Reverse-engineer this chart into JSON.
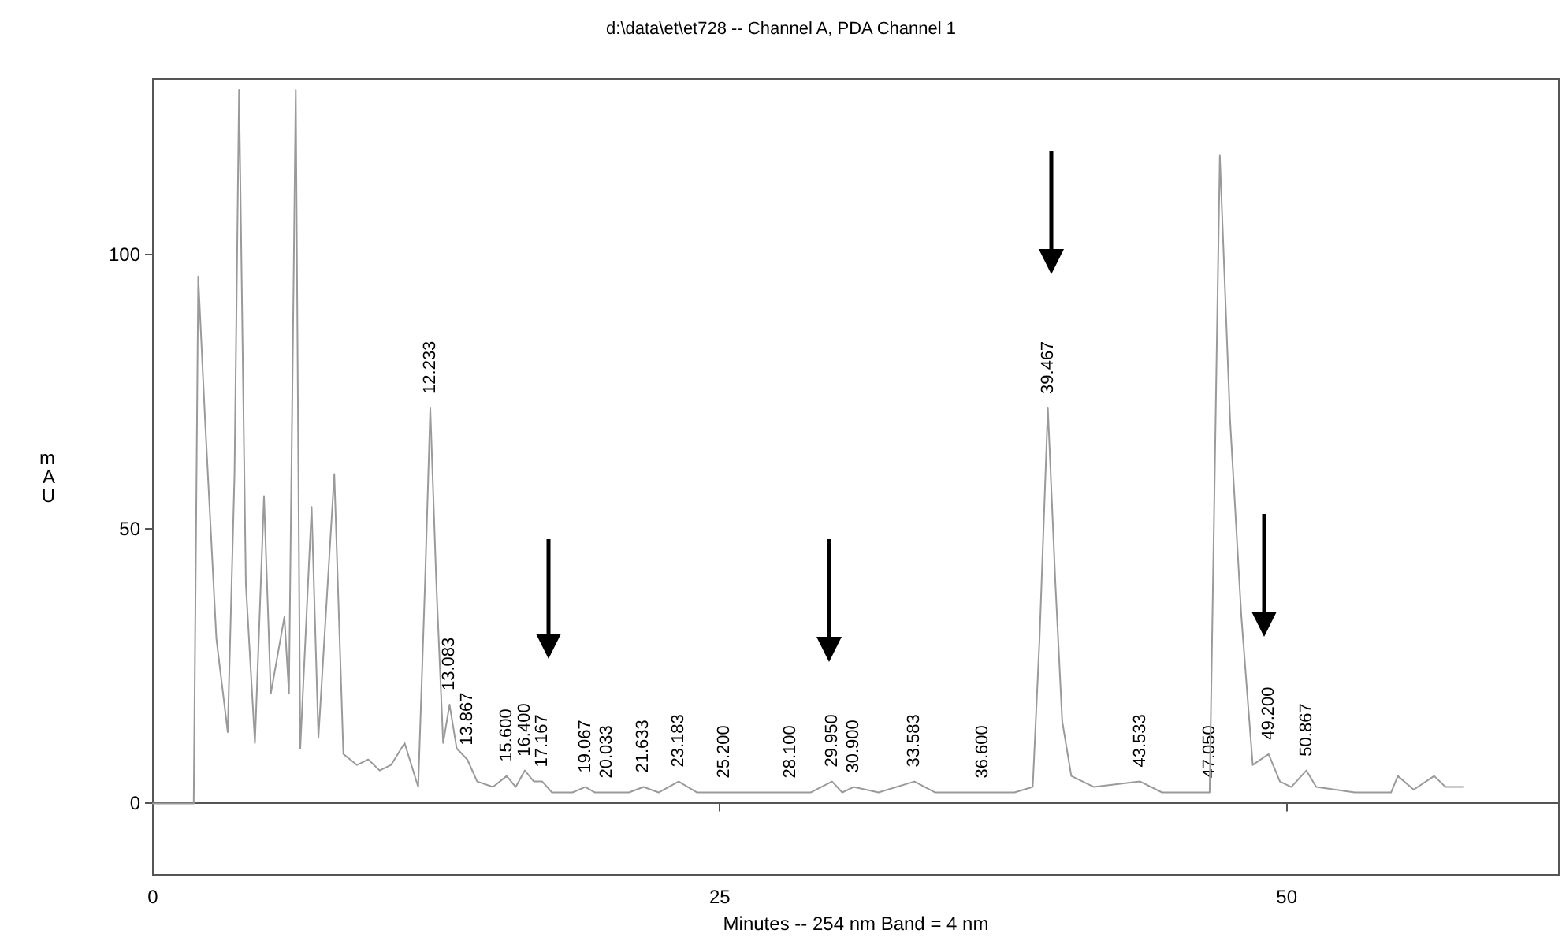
{
  "chart_data": {
    "type": "line",
    "title": "d:\\data\\et\\et728 -- Channel A, PDA Channel 1",
    "xlabel": "Minutes -- 254 nm Band = 4 nm",
    "ylabel": "mAU",
    "x": [
      0,
      1.8,
      2.0,
      2.3,
      2.8,
      3.3,
      3.6,
      3.8,
      4.1,
      4.5,
      4.9,
      5.2,
      5.8,
      6.0,
      6.3,
      6.5,
      7.0,
      7.3,
      8.0,
      8.4,
      9.0,
      9.5,
      10.0,
      10.5,
      11.1,
      11.7,
      12.0,
      12.233,
      12.5,
      12.8,
      13.083,
      13.4,
      13.867,
      14.3,
      15.0,
      15.6,
      16.0,
      16.4,
      16.8,
      17.167,
      17.6,
      18.5,
      19.067,
      19.5,
      20.033,
      21.0,
      21.633,
      22.3,
      23.183,
      24.0,
      25.2,
      26.5,
      28.1,
      29.0,
      29.95,
      30.4,
      30.9,
      32.0,
      33.583,
      34.5,
      36.6,
      38.0,
      38.8,
      39.1,
      39.467,
      39.8,
      40.1,
      40.5,
      41.5,
      43.533,
      44.5,
      46.0,
      46.6,
      47.05,
      47.5,
      48.0,
      48.5,
      49.2,
      49.7,
      50.2,
      50.867,
      51.3,
      53.0,
      54.6,
      54.9,
      55.6,
      56.5,
      57.0,
      57.8
    ],
    "values": [
      0,
      0,
      96,
      70,
      30,
      13,
      60,
      130,
      40,
      11,
      56,
      20,
      34,
      20,
      130,
      10,
      54,
      12,
      60,
      9,
      7,
      8,
      6,
      7,
      11,
      3,
      40,
      72,
      40,
      11,
      18,
      10,
      8,
      4,
      3,
      5,
      3,
      6,
      4,
      4,
      2,
      2,
      3,
      2,
      2,
      2,
      3,
      2,
      4,
      2,
      2,
      2,
      2,
      2,
      4,
      2,
      3,
      2,
      4,
      2,
      2,
      2,
      3,
      30,
      72,
      40,
      15,
      5,
      3,
      4,
      2,
      2,
      2,
      118,
      70,
      34,
      7,
      9,
      4,
      3,
      6,
      3,
      2,
      2,
      5,
      2.5,
      5,
      3,
      3
    ],
    "color": "#9a9a9a",
    "xlim": [
      0,
      62
    ],
    "xticks": [
      0,
      25,
      50
    ],
    "ylim": [
      -13,
      132
    ],
    "yticks": [
      0,
      50,
      100
    ],
    "annotations": [
      {
        "text": "12.233",
        "x": 12.233,
        "y": 72
      },
      {
        "text": "13.083",
        "x": 13.083,
        "y": 18
      },
      {
        "text": "13.867",
        "x": 13.867,
        "y": 8
      },
      {
        "text": "15.600",
        "x": 15.6,
        "y": 5
      },
      {
        "text": "16.400",
        "x": 16.4,
        "y": 6
      },
      {
        "text": "17.167",
        "x": 17.167,
        "y": 4
      },
      {
        "text": "19.067",
        "x": 19.067,
        "y": 3
      },
      {
        "text": "20.033",
        "x": 20.033,
        "y": 2
      },
      {
        "text": "21.633",
        "x": 21.633,
        "y": 3
      },
      {
        "text": "23.183",
        "x": 23.183,
        "y": 4
      },
      {
        "text": "25.200",
        "x": 25.2,
        "y": 2
      },
      {
        "text": "28.100",
        "x": 28.1,
        "y": 2
      },
      {
        "text": "29.950",
        "x": 29.95,
        "y": 4
      },
      {
        "text": "30.900",
        "x": 30.9,
        "y": 3
      },
      {
        "text": "33.583",
        "x": 33.583,
        "y": 4
      },
      {
        "text": "36.600",
        "x": 36.6,
        "y": 2
      },
      {
        "text": "39.467",
        "x": 39.467,
        "y": 72
      },
      {
        "text": "43.533",
        "x": 43.533,
        "y": 4
      },
      {
        "text": "47.050",
        "x": 46.6,
        "y": 2
      },
      {
        "text": "49.200",
        "x": 49.2,
        "y": 9
      },
      {
        "text": "50.867",
        "x": 50.867,
        "y": 6
      }
    ]
  }
}
